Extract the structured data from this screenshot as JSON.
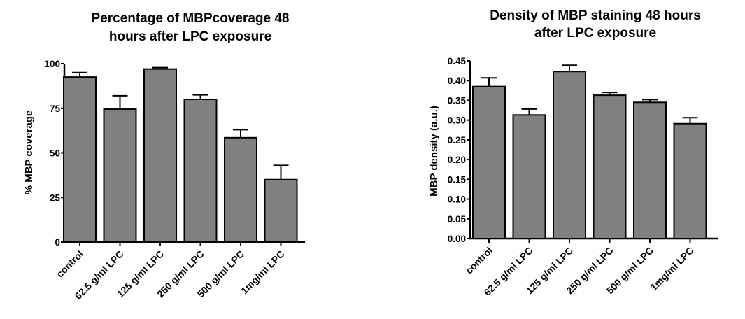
{
  "chart_data": [
    {
      "type": "bar",
      "title_lines": [
        "Percentage of MBPcoverage 48",
        "hours after LPC exposure"
      ],
      "ylabel": "% MBP coverage",
      "xlabel": "",
      "categories": [
        "control",
        "62.5 g/ml LPC",
        "125 g/ml LPC",
        "250 g/ml LPC",
        "500 g/ml LPC",
        "1mg/ml LPC"
      ],
      "values": [
        92.5,
        74.5,
        97,
        80,
        58.5,
        35
      ],
      "errors": [
        2.5,
        7.5,
        0.8,
        2.5,
        4.5,
        8
      ],
      "ylim": [
        0,
        100
      ],
      "yticks": [
        "0",
        "25",
        "50",
        "75",
        "100"
      ],
      "bar_color": "#808080",
      "grid": false
    },
    {
      "type": "bar",
      "title_lines": [
        "Density of MBP staining 48 hours",
        "after LPC exposure"
      ],
      "ylabel": "MBP density (a.u.)",
      "xlabel": "",
      "categories": [
        "control",
        "62.5 g/ml LPC",
        "125 g/ml LPC",
        "250 g/ml LPC",
        "500 g/ml LPC",
        "1mg/ml LPC"
      ],
      "values": [
        0.385,
        0.313,
        0.423,
        0.363,
        0.345,
        0.291
      ],
      "errors": [
        0.022,
        0.015,
        0.016,
        0.007,
        0.007,
        0.015
      ],
      "ylim": [
        0,
        0.45
      ],
      "yticks": [
        "0.00",
        "0.05",
        "0.10",
        "0.15",
        "0.20",
        "0.25",
        "0.30",
        "0.35",
        "0.40",
        "0.45"
      ],
      "bar_color": "#808080",
      "grid": false
    }
  ]
}
